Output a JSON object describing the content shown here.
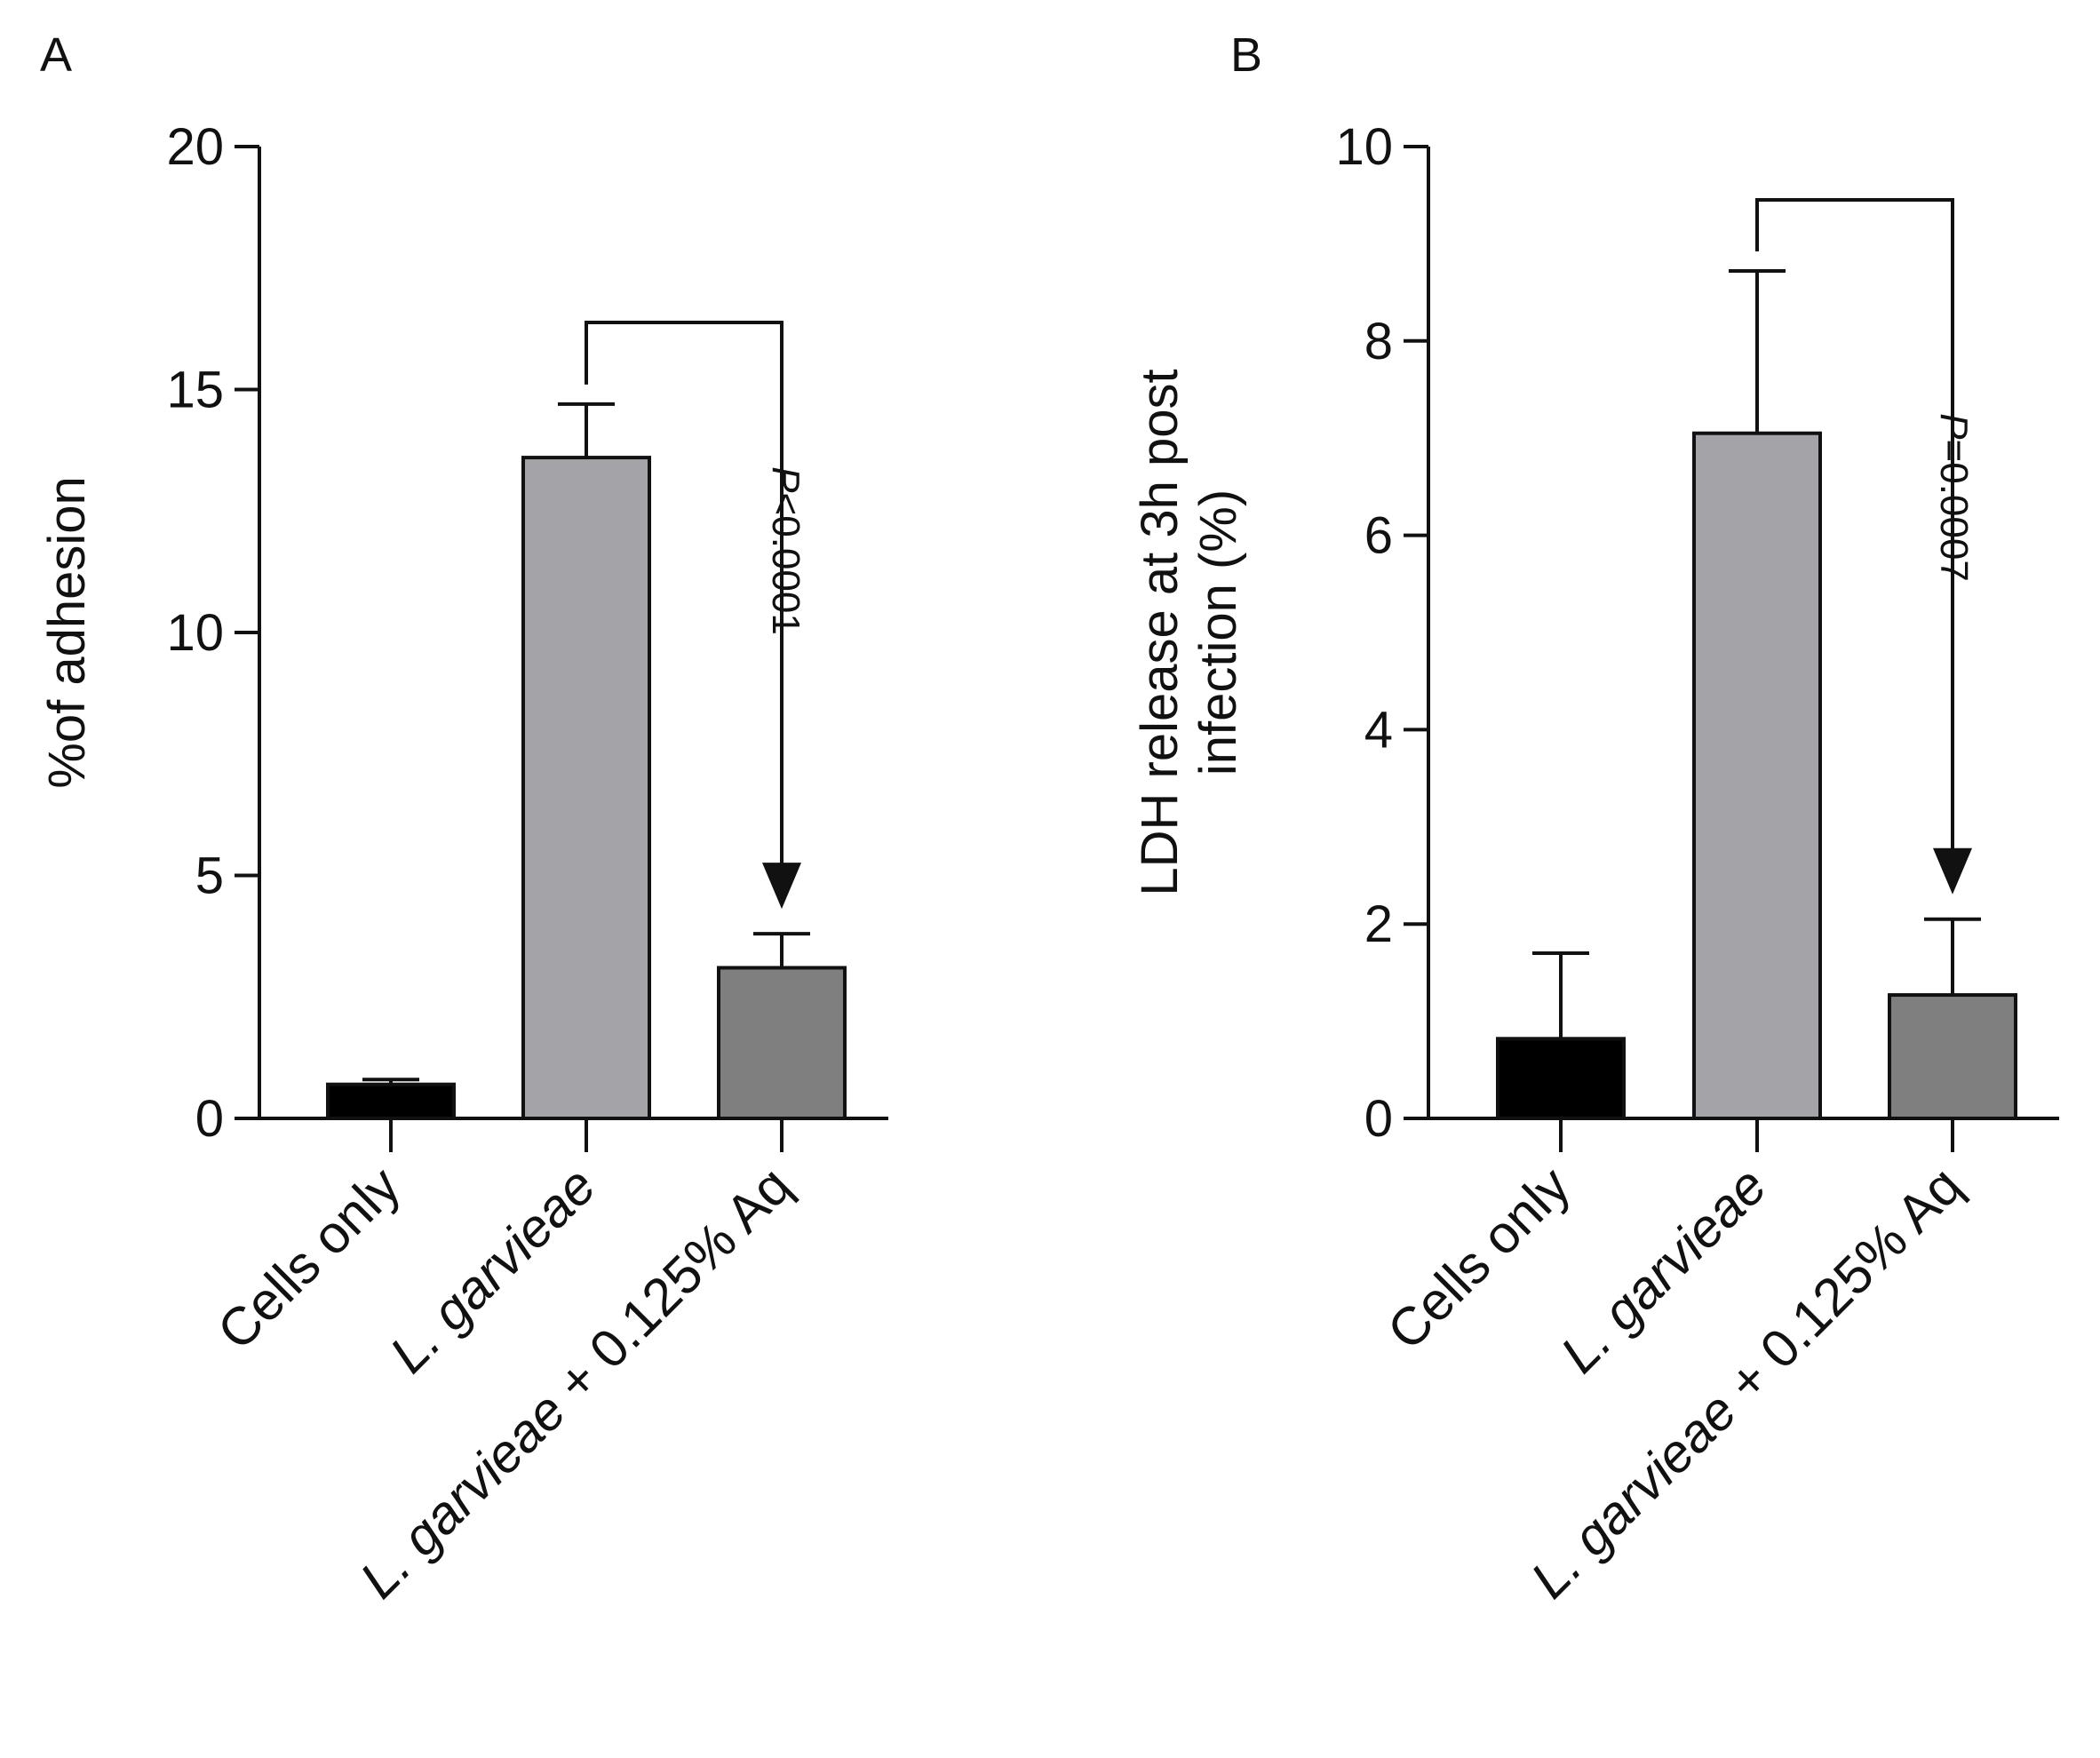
{
  "chart_data": [
    {
      "type": "bar",
      "panel_label": "A",
      "title": "",
      "xlabel": "",
      "ylabel": "%of adhesion",
      "ylim": [
        0,
        20
      ],
      "yticks": [
        0,
        5,
        10,
        15,
        20
      ],
      "grid": false,
      "categories": [
        {
          "italic_part": "",
          "normal_part": "Cells only"
        },
        {
          "italic_part": "L. garvieae",
          "normal_part": ""
        },
        {
          "italic_part": "L. garvieae",
          "normal_part": " + 0.125% Aq"
        }
      ],
      "values": [
        0.7,
        13.6,
        3.1
      ],
      "error_upper": [
        0.8,
        14.7,
        3.8
      ],
      "colors": [
        "#000000",
        "#a3a3a8",
        "#7f7f7f"
      ],
      "annotation": {
        "from": 1,
        "to": 2,
        "p_italic": "P",
        "p_text": "<0.0001"
      }
    },
    {
      "type": "bar",
      "panel_label": "B",
      "title": "",
      "xlabel": "",
      "ylabel_lines": [
        "LDH release at 3h post",
        "infection (%)"
      ],
      "ylim": [
        0,
        10
      ],
      "yticks": [
        0,
        2,
        4,
        6,
        8,
        10
      ],
      "grid": false,
      "categories": [
        {
          "italic_part": "",
          "normal_part": "Cells only"
        },
        {
          "italic_part": "L. garvieae",
          "normal_part": ""
        },
        {
          "italic_part": "L. garvieae",
          "normal_part": " + 0.125% Aq"
        }
      ],
      "values": [
        0.82,
        7.05,
        1.27
      ],
      "error_upper": [
        1.7,
        8.72,
        2.05
      ],
      "colors": [
        "#000000",
        "#a3a3a8",
        "#7f7f7f"
      ],
      "annotation": {
        "from": 1,
        "to": 2,
        "p_italic": "P",
        "p_text": "=0.0007"
      }
    }
  ]
}
